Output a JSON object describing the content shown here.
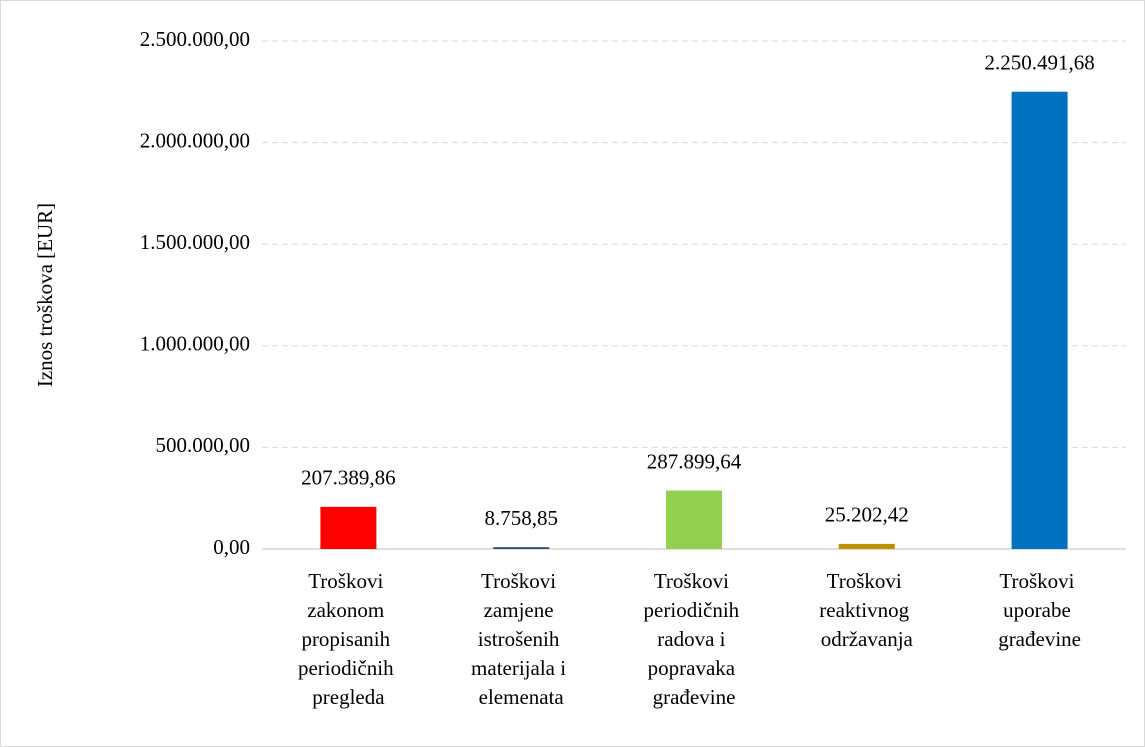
{
  "chart_data": {
    "type": "bar",
    "y_label": "Iznos troškova [EUR]",
    "categories": [
      "Troškovi zakonom propisanih periodičnih pregleda",
      "Troškovi zamjene istrošenih materijala i elemenata",
      "Troškovi periodičnih radova i popravaka građevine",
      "Troškovi reaktivnog održavanja",
      "Troškovi uporabe građevine"
    ],
    "values": [
      207389.86,
      8758.85,
      287899.64,
      25202.42,
      2250491.68
    ],
    "value_labels": [
      "207.389,86",
      "8.758,85",
      "287.899,64",
      "25.202,42",
      "2.250.491,68"
    ],
    "colors": [
      "#ff0000",
      "#1f4e79",
      "#92d050",
      "#bf9000",
      "#0070c0"
    ],
    "ylim": [
      0,
      2500000
    ],
    "yticks": [
      {
        "value": 0,
        "label": "0,00"
      },
      {
        "value": 500000,
        "label": "500.000,00"
      },
      {
        "value": 1000000,
        "label": "1.000.000,00"
      },
      {
        "value": 1500000,
        "label": "1.500.000,00"
      },
      {
        "value": 2000000,
        "label": "2.000.000,00"
      },
      {
        "value": 2500000,
        "label": "2.500.000,00"
      }
    ],
    "grid": true
  }
}
